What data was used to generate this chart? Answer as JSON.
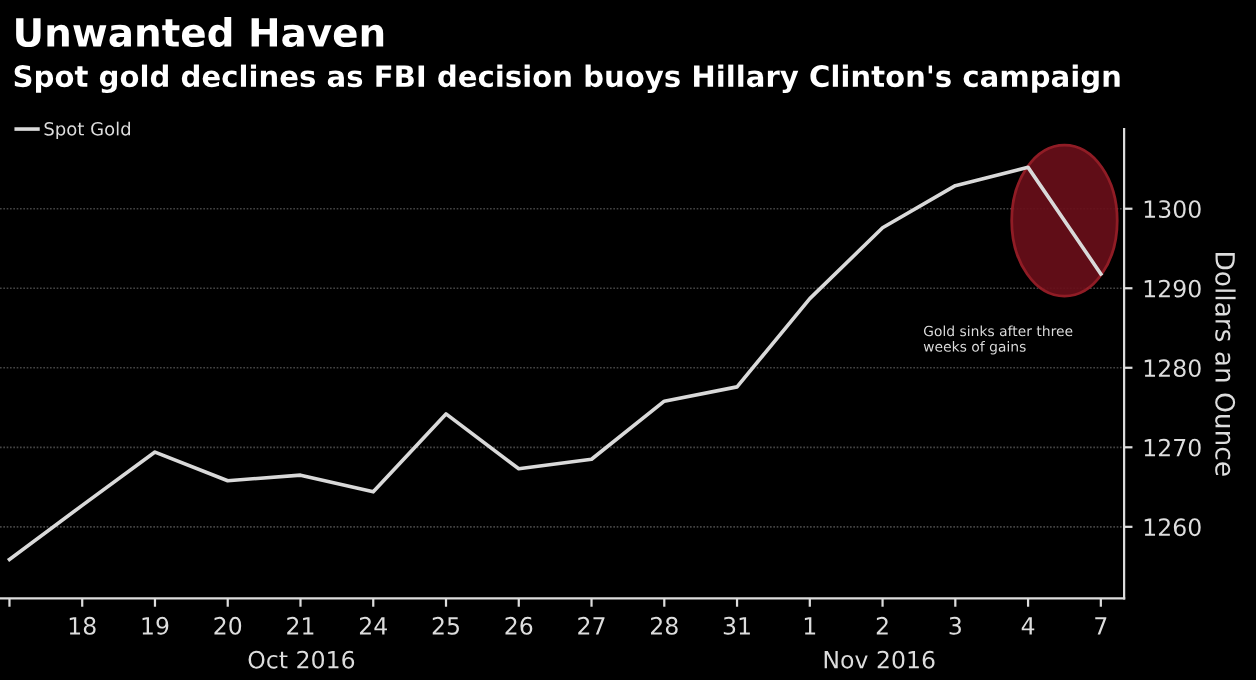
{
  "chart_data": {
    "type": "line",
    "title": "Unwanted Haven",
    "subtitle": "Spot gold declines as FBI decision buoys Hillary Clinton's campaign",
    "ylabel": "Dollars an Ounce",
    "categories": [
      null,
      "18",
      "19",
      "20",
      "21",
      "24",
      "25",
      "26",
      "27",
      "28",
      "31",
      "1",
      "2",
      "3",
      "4",
      "7"
    ],
    "series": [
      {
        "name": "Spot Gold",
        "color": "#d9d9d9",
        "values": [
          1255.9,
          1262.7,
          1269.4,
          1265.8,
          1266.5,
          1264.4,
          1274.2,
          1267.3,
          1268.5,
          1275.8,
          1277.6,
          1288.7,
          1297.6,
          1302.9,
          1305.2,
          1291.8
        ]
      }
    ],
    "ylim": [
      1251,
      1310
    ],
    "yticks": [
      1260,
      1270,
      1280,
      1290,
      1300
    ],
    "annotations": [
      "Oct 2016",
      "Nov 2016",
      "Gold sinks after three\nweeks of gains"
    ],
    "grid": "y",
    "legend": "top left"
  }
}
